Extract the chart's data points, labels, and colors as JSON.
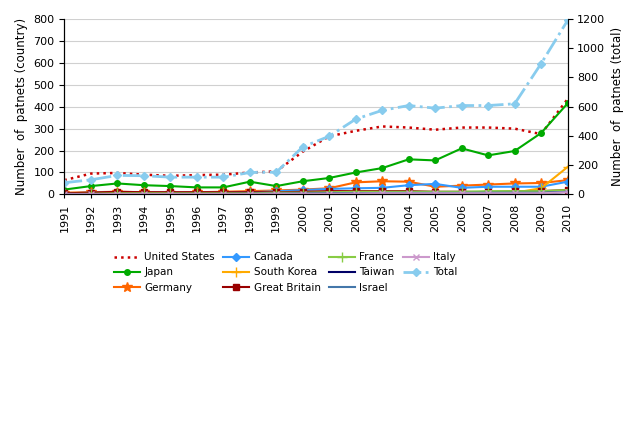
{
  "years": [
    1991,
    1992,
    1993,
    1994,
    1995,
    1996,
    1997,
    1998,
    1999,
    2000,
    2001,
    2002,
    2003,
    2004,
    2005,
    2006,
    2007,
    2008,
    2009,
    2010
  ],
  "united_states": [
    65,
    95,
    98,
    90,
    85,
    88,
    90,
    100,
    105,
    195,
    265,
    290,
    310,
    305,
    295,
    305,
    305,
    300,
    275,
    435
  ],
  "japan": [
    22,
    38,
    50,
    42,
    38,
    32,
    32,
    58,
    38,
    60,
    75,
    100,
    120,
    160,
    155,
    210,
    178,
    198,
    280,
    415
  ],
  "germany": [
    8,
    10,
    12,
    10,
    8,
    10,
    12,
    15,
    18,
    22,
    28,
    55,
    60,
    58,
    35,
    40,
    45,
    50,
    52,
    65
  ],
  "canada": [
    5,
    8,
    8,
    8,
    8,
    8,
    8,
    10,
    14,
    20,
    25,
    28,
    30,
    42,
    48,
    30,
    35,
    35,
    35,
    58
  ],
  "south_korea": [
    0,
    1,
    1,
    1,
    1,
    1,
    1,
    1,
    2,
    2,
    3,
    5,
    5,
    5,
    5,
    5,
    5,
    8,
    28,
    125
  ],
  "great_britain": [
    5,
    8,
    12,
    10,
    10,
    10,
    10,
    10,
    10,
    12,
    15,
    15,
    15,
    15,
    12,
    12,
    10,
    15,
    15,
    20
  ],
  "france": [
    2,
    3,
    5,
    5,
    5,
    5,
    5,
    5,
    8,
    8,
    10,
    12,
    12,
    12,
    12,
    12,
    15,
    15,
    15,
    20
  ],
  "taiwan": [
    0,
    1,
    1,
    1,
    2,
    2,
    2,
    2,
    2,
    3,
    4,
    5,
    5,
    5,
    5,
    5,
    5,
    5,
    5,
    12
  ],
  "israel": [
    1,
    2,
    2,
    2,
    2,
    2,
    2,
    3,
    3,
    4,
    5,
    5,
    7,
    7,
    7,
    7,
    8,
    8,
    8,
    12
  ],
  "italy": [
    1,
    1,
    2,
    2,
    2,
    2,
    2,
    2,
    3,
    3,
    3,
    4,
    5,
    5,
    5,
    5,
    5,
    5,
    5,
    10
  ],
  "total": [
    80,
    100,
    130,
    128,
    118,
    118,
    118,
    150,
    152,
    325,
    398,
    515,
    575,
    608,
    590,
    608,
    608,
    620,
    895,
    1190
  ],
  "ylabel_left": "Number  of  patnets (country)",
  "ylabel_right": "Number  of  patnets (total)",
  "ylim_left": [
    0,
    800
  ],
  "ylim_right": [
    0,
    1200
  ],
  "yticks_left": [
    0,
    100,
    200,
    300,
    400,
    500,
    600,
    700,
    800
  ],
  "yticks_right": [
    0,
    200,
    400,
    600,
    800,
    1000,
    1200
  ],
  "background_color": "#ffffff",
  "grid_color": "#d0d0d0"
}
